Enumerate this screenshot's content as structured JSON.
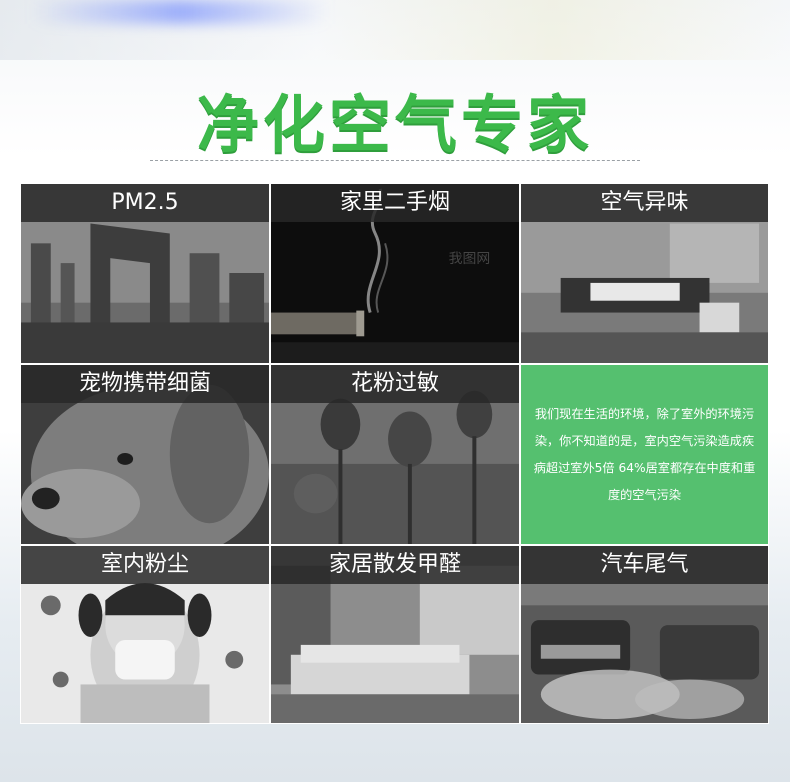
{
  "title": "净化空气专家",
  "cells": [
    {
      "label": "PM2.5",
      "image": "smoggy-city-photo"
    },
    {
      "label": "家里二手烟",
      "image": "cigarette-smoke-photo",
      "watermark": "我图网"
    },
    {
      "label": "空气异味",
      "image": "bathroom-photo"
    },
    {
      "label": "宠物携带细菌",
      "image": "dog-photo"
    },
    {
      "label": "花粉过敏",
      "image": "tulips-photo"
    },
    {
      "info": "我们现在生活的环境，除了室外的环境污染，你不知道的是，室内空气污染造成疾病超过室外5倍  64%居室都存在中度和重度的空气污染"
    },
    {
      "label": "室内粉尘",
      "image": "child-sneezing-photo"
    },
    {
      "label": "家居散发甲醛",
      "image": "living-room-photo"
    },
    {
      "label": "汽车尾气",
      "image": "car-exhaust-photo"
    }
  ],
  "colors": {
    "accent": "#3cb94a",
    "info_bg": "#55c06f"
  }
}
